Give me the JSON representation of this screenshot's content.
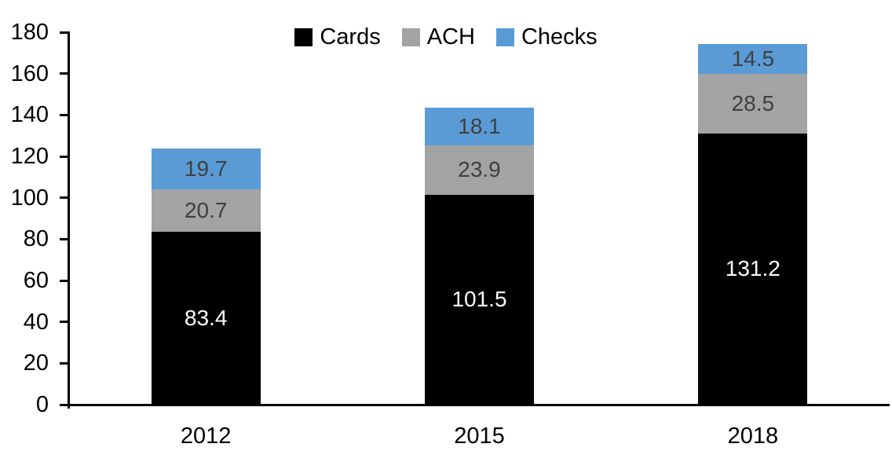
{
  "chart_data": {
    "type": "bar",
    "stacked": true,
    "title": "",
    "categories": [
      "2012",
      "2015",
      "2018"
    ],
    "series": [
      {
        "name": "Cards",
        "color": "#000000",
        "label_color": "#ffffff",
        "values": [
          83.4,
          101.5,
          131.2
        ]
      },
      {
        "name": "ACH",
        "color": "#a3a3a3",
        "label_color": "#3f3f3f",
        "values": [
          20.7,
          23.9,
          28.5
        ]
      },
      {
        "name": "Checks",
        "color": "#5b9bd5",
        "label_color": "#3f3f3f",
        "values": [
          19.7,
          18.1,
          14.5
        ]
      }
    ],
    "totals": [
      123.8,
      143.5,
      174.2
    ],
    "y_axis": {
      "min": 0,
      "max": 180,
      "step": 20,
      "tick_labels": [
        "0",
        "20",
        "40",
        "60",
        "80",
        "100",
        "120",
        "140",
        "160",
        "180"
      ]
    },
    "x_axis": {
      "tick_labels": [
        "2012",
        "2015",
        "2018"
      ]
    },
    "legend": {
      "position": "top-center",
      "entries": [
        "Cards",
        "ACH",
        "Checks"
      ]
    },
    "grid": false,
    "colors": {
      "background": "#ffffff",
      "axis": "#000000",
      "cards": "#000000",
      "ach": "#a3a3a3",
      "checks": "#5b9bd5"
    }
  }
}
